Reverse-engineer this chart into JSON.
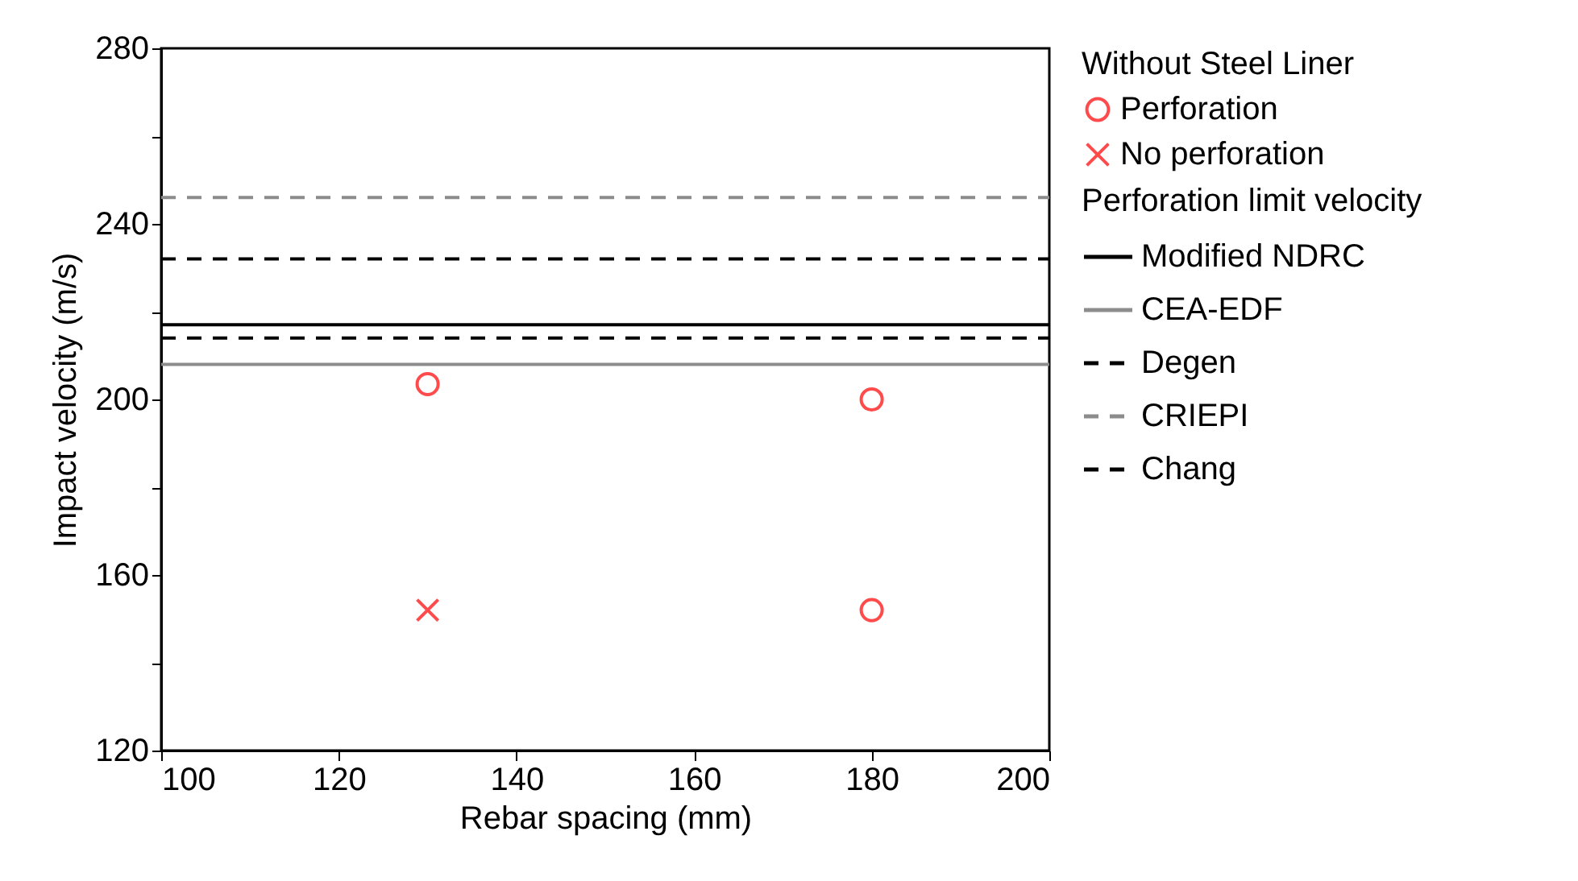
{
  "chart_data": {
    "type": "scatter",
    "xlabel": "Rebar spacing (mm)",
    "ylabel": "Impact velocity (m/s)",
    "legend_title": [
      "Without Steel Liner",
      "Perforation limit velocity"
    ],
    "xlim": [
      100,
      200
    ],
    "xticks": [
      100,
      120,
      140,
      160,
      180,
      200
    ],
    "ylim": [
      120,
      280
    ],
    "yticks": [
      120,
      {
        "value": 140,
        "label": null
      },
      160,
      {
        "value": 180,
        "label": null
      },
      200,
      {
        "value": 220,
        "label": null
      },
      240,
      {
        "value": 260,
        "label": null
      },
      280
    ],
    "grid": false,
    "legend": "right",
    "series": [
      {
        "name": "Perforation",
        "marker": "circle",
        "color": "#ff0000",
        "x": [
          130,
          180,
          180
        ],
        "values": [
          203.5,
          200,
          152
        ]
      },
      {
        "name": "No perforation",
        "marker": "cross",
        "color": "#ff0000",
        "x": [
          130
        ],
        "values": [
          152
        ]
      },
      {
        "name": "Modified NDRC",
        "type": "line",
        "line_style": "solid",
        "color": "#000000",
        "x": [
          100,
          200
        ],
        "values": [
          217,
          217
        ]
      },
      {
        "name": "CEA-EDF",
        "type": "line",
        "line_style": "solid",
        "color": "#8c8c8c",
        "x": [
          100,
          200
        ],
        "values": [
          208,
          208
        ]
      },
      {
        "name": "Degen",
        "type": "line",
        "line_style": "dashed",
        "color": "#000000",
        "x": [
          100,
          200
        ],
        "values": [
          232,
          232
        ]
      },
      {
        "name": "CRIEPI",
        "type": "line",
        "line_style": "dashed",
        "color": "#8c8c8c",
        "x": [
          100,
          200
        ],
        "values": [
          246,
          246
        ]
      },
      {
        "name": "Chang",
        "type": "line",
        "line_style": "dashed",
        "color": "#000000",
        "x": [
          100,
          200
        ],
        "values": [
          214,
          214
        ]
      }
    ]
  }
}
